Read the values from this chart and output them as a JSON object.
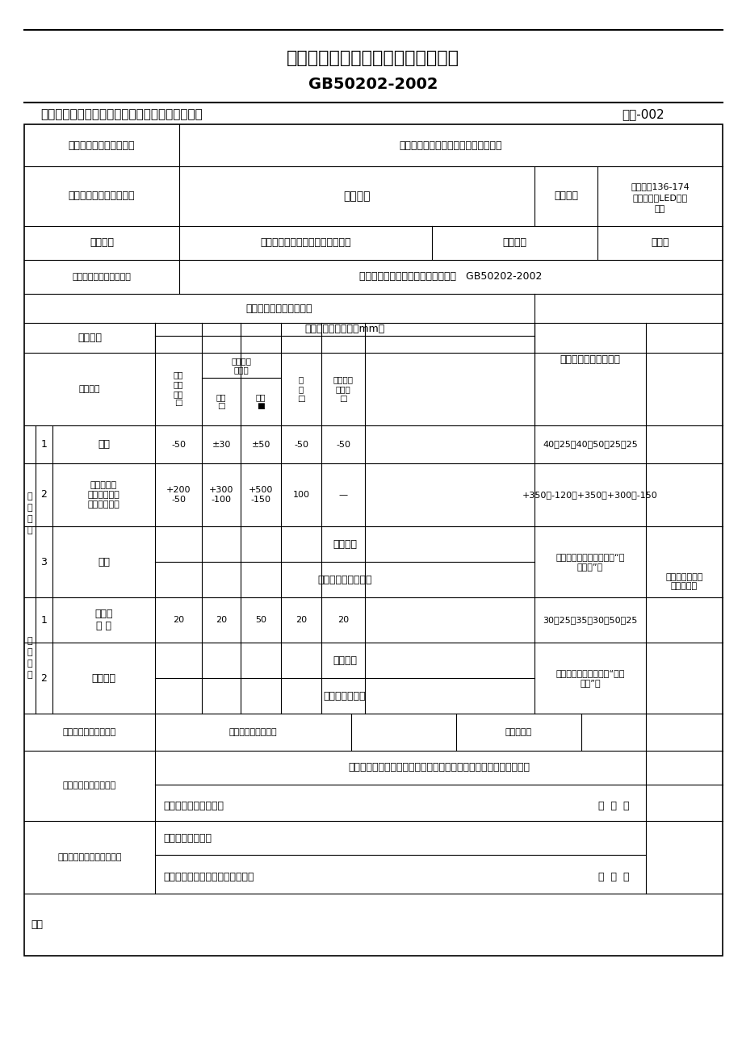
{
  "title1": "土方开挖工程检验批质量验收记录表",
  "title2": "GB50202-2002",
  "project_name": "鹤壁市鹤山区葵嘴线路灯新建改造工程",
  "code": "编号-002",
  "unit_label": "单位（子单位）工程名称",
  "sub_label": "分部（子分部）工程名称",
  "sub_value": "土方工程",
  "accept_loc": "验收部位",
  "accept_loc_val": "（东向西136-174\n盏）太阳能LED路灯\n基座",
  "contractor_label": "施工单位",
  "contractor": "鹤壁市国立光电科技股份有限公司",
  "pm_label": "项目经理",
  "pm": "李建义",
  "std_label": "施工执行标准名称及编号",
  "std_value": "建筑地基基础工程施工质量验收规范   GB50202-2002",
  "bg_color": "#ffffff"
}
